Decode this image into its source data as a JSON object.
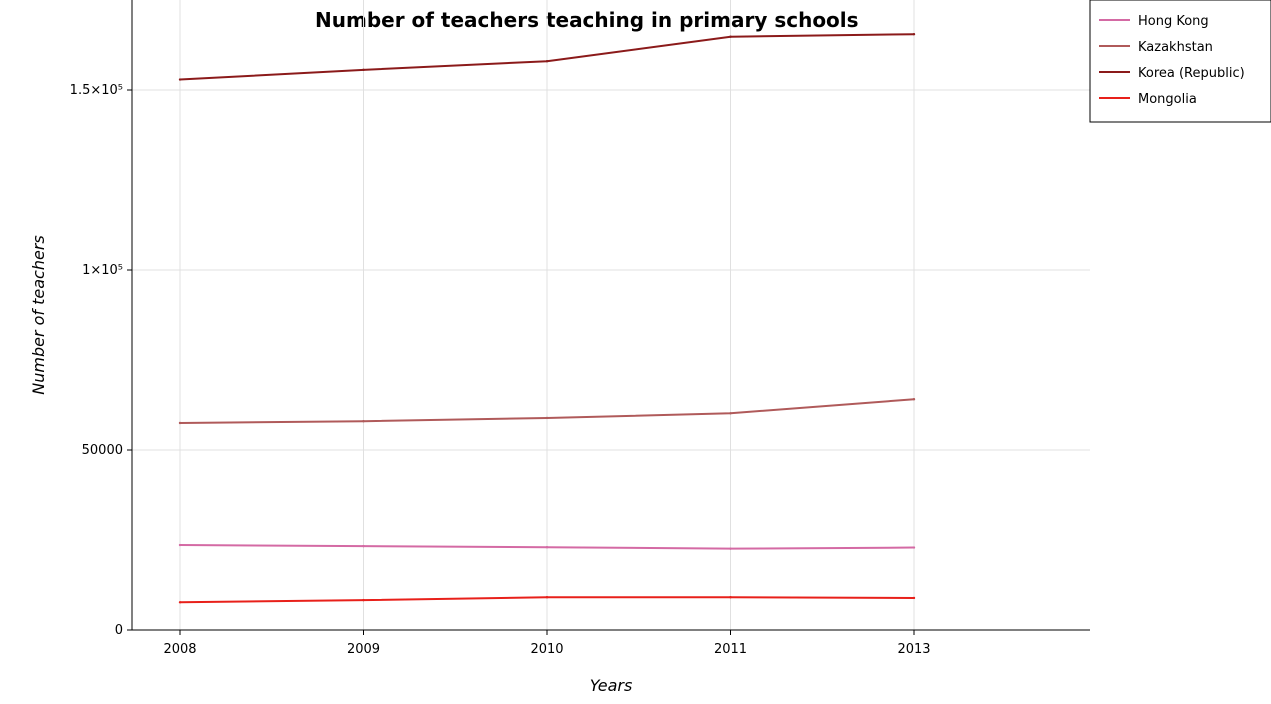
{
  "chart_data": {
    "type": "line",
    "title": "Number of teachers teaching in primary schools",
    "xlabel": "Years",
    "ylabel": "Number of teachers",
    "categories": [
      "2008",
      "2009",
      "2010",
      "2011",
      "2013"
    ],
    "ylim": [
      0,
      175000
    ],
    "yticks": [
      0,
      50000,
      100000,
      150000
    ],
    "ytick_labels": [
      "0",
      "50000",
      "1×10⁵",
      "1.5×10⁵"
    ],
    "grid": true,
    "legend_position": "top-right",
    "series": [
      {
        "name": "Hong Kong",
        "color": "#d46aa4",
        "values": [
          23600,
          23300,
          23000,
          22600,
          22900
        ]
      },
      {
        "name": "Kazakhstan",
        "color": "#b05a5a",
        "values": [
          57500,
          58000,
          58900,
          60200,
          64100
        ]
      },
      {
        "name": "Korea (Republic)",
        "color": "#8b1a1a",
        "values": [
          152900,
          155600,
          158000,
          164800,
          165500
        ]
      },
      {
        "name": "Mongolia",
        "color": "#e8201a",
        "values": [
          7700,
          8300,
          9100,
          9100,
          8900
        ]
      }
    ]
  }
}
